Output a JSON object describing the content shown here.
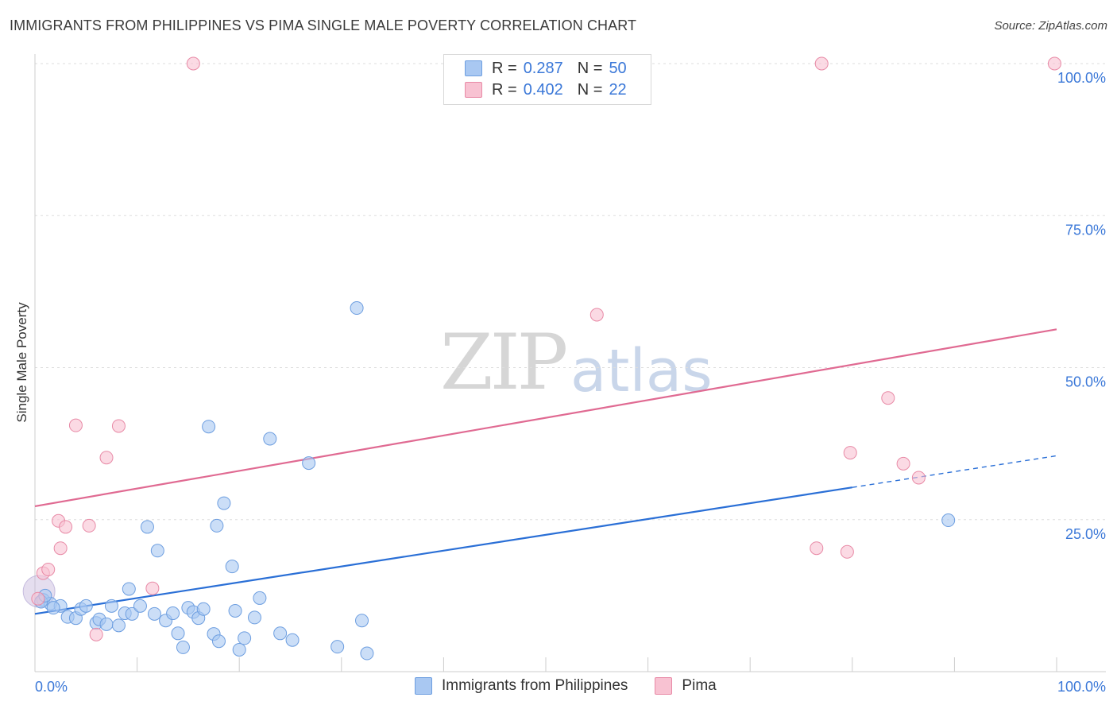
{
  "header": {
    "title": "IMMIGRANTS FROM PHILIPPINES VS PIMA SINGLE MALE POVERTY CORRELATION CHART",
    "source": "Source: ZipAtlas.com"
  },
  "watermark": {
    "zip": "ZIP",
    "atlas": "atlas"
  },
  "legend": {
    "rows": [
      {
        "r_label": "R =",
        "r_value": "0.287",
        "n_label": "N =",
        "n_value": "50",
        "color": "#a9c8f2",
        "border": "#6d9ee0"
      },
      {
        "r_label": "R =",
        "r_value": "0.402",
        "n_label": "N =",
        "n_value": "22",
        "color": "#f8c2d2",
        "border": "#e88aa6"
      }
    ]
  },
  "chart_data": {
    "type": "scatter",
    "title": "IMMIGRANTS FROM PHILIPPINES VS PIMA SINGLE MALE POVERTY CORRELATION CHART",
    "xlabel": "",
    "ylabel": "Single Male Poverty",
    "xlim": [
      0,
      100
    ],
    "ylim": [
      0,
      100
    ],
    "x_tick_labels": [
      "0.0%",
      "100.0%"
    ],
    "y_tick_labels": [
      "25.0%",
      "50.0%",
      "75.0%",
      "100.0%"
    ],
    "y_ticks": [
      25,
      50,
      75,
      100
    ],
    "series": [
      {
        "name": "Immigrants from Philippines",
        "color": "#6d9ee0",
        "fill": "#a9c8f2",
        "line_color": "#2a6fd6",
        "trend": {
          "x0": 0,
          "y0": 9.5,
          "x1": 80,
          "y1": 30.3,
          "dash_to_x": 100,
          "dash_to_y": 35.5
        },
        "points": [
          [
            0.8,
            11.8
          ],
          [
            1.5,
            11.2
          ],
          [
            2.5,
            10.8
          ],
          [
            3.2,
            9.0
          ],
          [
            4.0,
            8.8
          ],
          [
            4.5,
            10.3
          ],
          [
            5.0,
            10.8
          ],
          [
            6.0,
            8.0
          ],
          [
            6.3,
            8.6
          ],
          [
            7.0,
            7.8
          ],
          [
            7.5,
            10.8
          ],
          [
            8.2,
            7.6
          ],
          [
            8.8,
            9.6
          ],
          [
            9.2,
            13.6
          ],
          [
            9.5,
            9.5
          ],
          [
            10.3,
            10.8
          ],
          [
            11.0,
            23.8
          ],
          [
            11.7,
            9.5
          ],
          [
            12.0,
            19.9
          ],
          [
            12.8,
            8.4
          ],
          [
            13.5,
            9.6
          ],
          [
            14.0,
            6.3
          ],
          [
            14.5,
            4.0
          ],
          [
            15.0,
            10.5
          ],
          [
            15.5,
            9.8
          ],
          [
            16.0,
            8.8
          ],
          [
            16.5,
            10.3
          ],
          [
            17.0,
            40.3
          ],
          [
            17.5,
            6.2
          ],
          [
            18.0,
            5.0
          ],
          [
            17.8,
            24.0
          ],
          [
            18.5,
            27.7
          ],
          [
            19.3,
            17.3
          ],
          [
            19.6,
            10.0
          ],
          [
            20.0,
            3.6
          ],
          [
            20.5,
            5.5
          ],
          [
            21.5,
            8.9
          ],
          [
            22.0,
            12.1
          ],
          [
            23.0,
            38.3
          ],
          [
            24.0,
            6.3
          ],
          [
            25.2,
            5.2
          ],
          [
            26.8,
            34.3
          ],
          [
            29.6,
            4.1
          ],
          [
            31.5,
            59.8
          ],
          [
            32.0,
            8.4
          ],
          [
            32.5,
            3.0
          ],
          [
            89.4,
            24.9
          ],
          [
            0.6,
            11.5
          ],
          [
            1.0,
            12.5
          ],
          [
            1.8,
            10.5
          ]
        ]
      },
      {
        "name": "Pima",
        "color": "#e88aa6",
        "fill": "#f8c2d2",
        "line_color": "#e06a92",
        "trend": {
          "x0": 0,
          "y0": 27.2,
          "x1": 100,
          "y1": 56.3
        },
        "points": [
          [
            0.3,
            12.0
          ],
          [
            0.8,
            16.2
          ],
          [
            1.3,
            16.8
          ],
          [
            2.3,
            24.8
          ],
          [
            2.5,
            20.3
          ],
          [
            3.0,
            23.8
          ],
          [
            4.0,
            40.5
          ],
          [
            5.3,
            24.0
          ],
          [
            6.0,
            6.1
          ],
          [
            7.0,
            35.2
          ],
          [
            8.2,
            40.4
          ],
          [
            11.5,
            13.7
          ],
          [
            15.5,
            100
          ],
          [
            55.0,
            58.7
          ],
          [
            76.5,
            20.3
          ],
          [
            77.0,
            100
          ],
          [
            79.5,
            19.7
          ],
          [
            79.8,
            36.0
          ],
          [
            83.5,
            45.0
          ],
          [
            85.0,
            34.2
          ],
          [
            86.5,
            31.9
          ],
          [
            99.8,
            100
          ]
        ]
      }
    ],
    "bottom_legend": [
      "Immigrants from Philippines",
      "Pima"
    ]
  }
}
